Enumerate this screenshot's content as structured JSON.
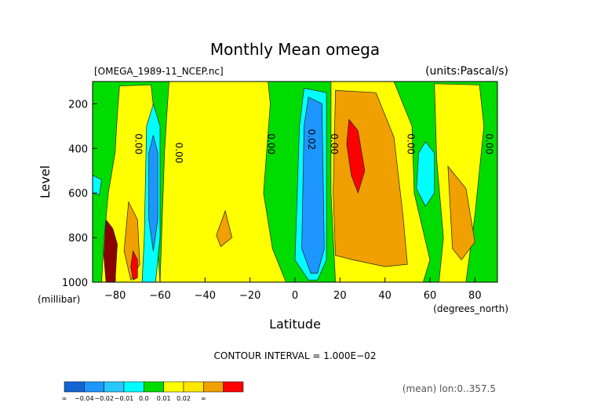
{
  "chart_data": {
    "type": "contour",
    "title": "Monthly Mean omega",
    "file_label": "[OMEGA_1989-11_NCEP.nc]",
    "units_label": "(units:Pascal/s)",
    "xlabel": "Latitude",
    "x_units": "(degrees_north)",
    "ylabel": "Level",
    "y_units": "(millibar)",
    "xlim": [
      -90,
      90
    ],
    "ylim": [
      1000,
      100
    ],
    "x_ticks": [
      -80,
      -60,
      -40,
      -20,
      0,
      20,
      40,
      60,
      80
    ],
    "x_tick_labels": [
      "−80",
      "−60",
      "−40",
      "−20",
      "0",
      "20",
      "40",
      "60",
      "80"
    ],
    "y_ticks": [
      200,
      400,
      600,
      800,
      1000
    ],
    "contour_interval_text": "CONTOUR INTERVAL = 1.000E−02",
    "subset_text": "(mean) lon:0..357.5",
    "contour_labels": [
      {
        "text": "0.00",
        "x": -71,
        "y": 380
      },
      {
        "text": "0.00",
        "x": -53,
        "y": 420
      },
      {
        "text": "0.00",
        "x": -12,
        "y": 380
      },
      {
        "text": "0.02",
        "x": 6,
        "y": 360
      },
      {
        "text": "0.00",
        "x": 16,
        "y": 380
      },
      {
        "text": "0.00",
        "x": 50,
        "y": 380
      },
      {
        "text": "0.00",
        "x": 85,
        "y": 380
      }
    ],
    "colorbar": {
      "bins": [
        {
          "color": "#1464d2",
          "label": "∞"
        },
        {
          "color": "#1e96ff",
          "label": "−0.04"
        },
        {
          "color": "#28c8fa",
          "label": "−0.02"
        },
        {
          "color": "#00ffff",
          "label": "−0.01"
        },
        {
          "color": "#00dc00",
          "label": "0.0"
        },
        {
          "color": "#ffff00",
          "label": "0.01"
        },
        {
          "color": "#ffe600",
          "label": "0.02"
        },
        {
          "color": "#f0a000",
          "label": "∞"
        },
        {
          "color": "#ff0000",
          "label": ""
        }
      ]
    },
    "colors": {
      "green": "#00dc00",
      "yellow": "#ffff00",
      "orange": "#f0a000",
      "red": "#ff0000",
      "cyan": "#00ffff",
      "blue": "#1e96ff",
      "darkred": "#8b0000"
    }
  }
}
